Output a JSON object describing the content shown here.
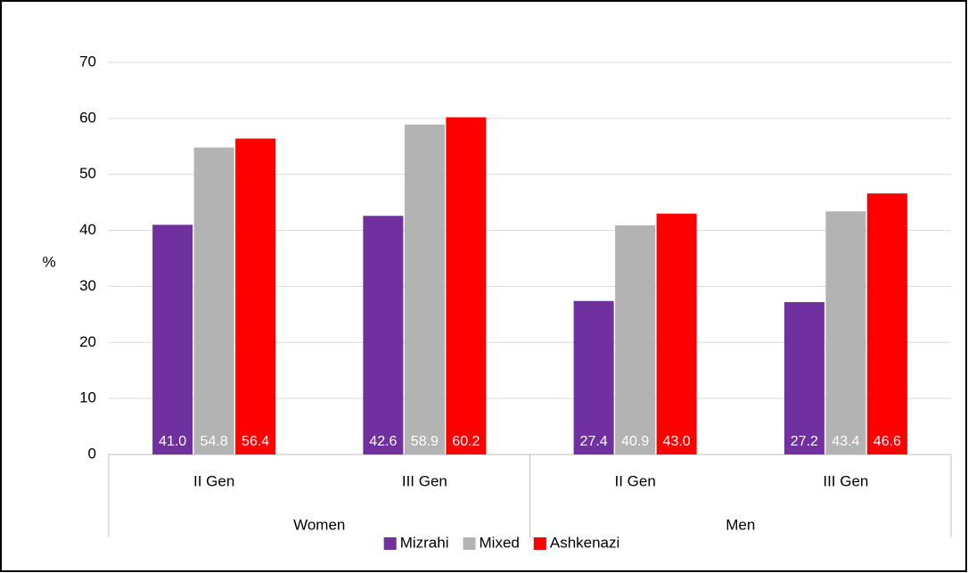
{
  "chart_data": {
    "type": "bar",
    "y_label": "%",
    "categories": [
      "II Gen",
      "III Gen",
      "II Gen",
      "III Gen"
    ],
    "groups": [
      "Women",
      "Men"
    ],
    "series": [
      {
        "name": "Mizrahi",
        "color": "#7030a0",
        "values": [
          41.0,
          42.6,
          27.4,
          27.2
        ],
        "value_labels": [
          "41.0",
          "42.6",
          "27.4",
          "27.2"
        ]
      },
      {
        "name": "Mixed",
        "color": "#b3b3b3",
        "values": [
          54.8,
          58.9,
          40.9,
          43.4
        ],
        "value_labels": [
          "54.8",
          "58.9",
          "40.9",
          "43.4"
        ]
      },
      {
        "name": "Ashkenazi",
        "color": "#ff0000",
        "values": [
          56.4,
          60.2,
          43.0,
          46.6
        ],
        "value_labels": [
          "56.4",
          "60.2",
          "43.0",
          "46.6"
        ]
      }
    ],
    "ylim": [
      0,
      70
    ],
    "yticks": [
      0,
      10,
      20,
      30,
      40,
      50,
      60,
      70
    ],
    "grid": true,
    "legend": "bottom"
  }
}
